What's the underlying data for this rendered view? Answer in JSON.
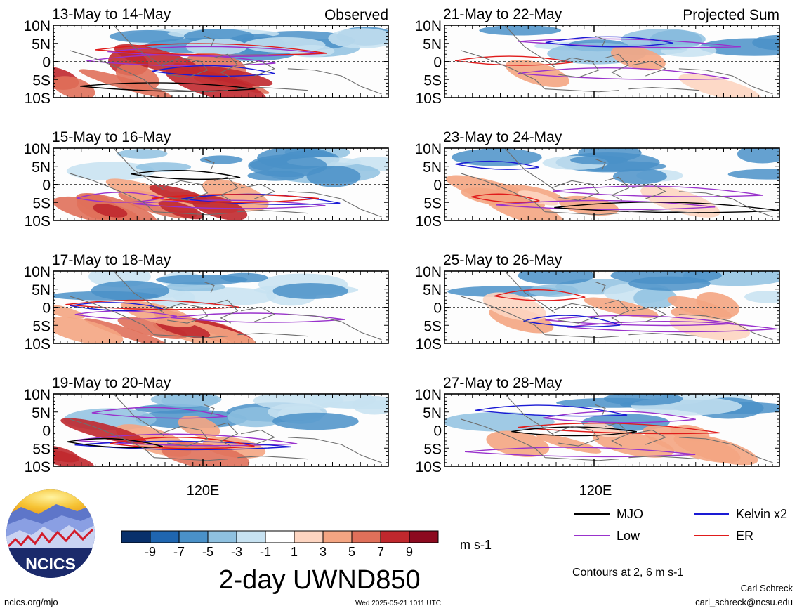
{
  "panels": [
    {
      "title": "13-May to 14-May",
      "corner": "Observed",
      "column": "left",
      "row": 0
    },
    {
      "title": "15-May to 16-May",
      "corner": "",
      "column": "left",
      "row": 1
    },
    {
      "title": "17-May to 18-May",
      "corner": "",
      "column": "left",
      "row": 2
    },
    {
      "title": "19-May to 20-May",
      "corner": "",
      "column": "left",
      "row": 3
    },
    {
      "title": "21-May to 22-May",
      "corner": "Projected Sum",
      "column": "right",
      "row": 0
    },
    {
      "title": "23-May to 24-May",
      "corner": "",
      "column": "right",
      "row": 1
    },
    {
      "title": "25-May to 26-May",
      "corner": "",
      "column": "right",
      "row": 2
    },
    {
      "title": "27-May to 28-May",
      "corner": "",
      "column": "right",
      "row": 3
    }
  ],
  "lat_ticks": [
    "10N",
    "5N",
    "0",
    "5S",
    "10S"
  ],
  "lon_label": "120E",
  "colorbar": {
    "colors": [
      "#08306b",
      "#1f66b0",
      "#4a91c8",
      "#8fc1e0",
      "#c7e2f1",
      "#ffffff",
      "#fdd5c1",
      "#f4a582",
      "#e0705a",
      "#c0282d",
      "#8c0a1f"
    ],
    "tick_labels": [
      "-9",
      "-7",
      "-5",
      "-3",
      "-1",
      "1",
      "3",
      "5",
      "7",
      "9"
    ],
    "units": "m s-1"
  },
  "field_title": "2-day UWND850",
  "legend": [
    {
      "label": "MJO",
      "color": "#000000"
    },
    {
      "label": "Kelvin x2",
      "color": "#1a1ad4"
    },
    {
      "label": "Low",
      "color": "#9932cc"
    },
    {
      "label": "ER",
      "color": "#e01b1b"
    }
  ],
  "contours_note": "Contours at 2, 6 m s-1",
  "logo_text": "NCICS",
  "footer": {
    "url": "ncics.org/mjo",
    "timestamp": "Wed 2025-05-21 1011 UTC",
    "author": "Carl Schreck",
    "email": "carl_schreck@ncsu.edu"
  },
  "chart_data": [
    {
      "type": "heatmap",
      "title": "13-May to 14-May",
      "variable": "850-hPa zonal wind anomaly (2-day)",
      "units": "m s-1",
      "ylabel_ticks": [
        "10N",
        "5N",
        "0",
        "5S",
        "10S"
      ],
      "xlabel_ticks": [
        "120E"
      ],
      "contour_levels": [
        2,
        6
      ],
      "contour_series": [
        "MJO",
        "Kelvin x2",
        "Low",
        "ER"
      ]
    },
    {
      "type": "heatmap",
      "title": "15-May to 16-May",
      "units": "m s-1",
      "contour_levels": [
        2,
        6
      ]
    },
    {
      "type": "heatmap",
      "title": "17-May to 18-May",
      "units": "m s-1",
      "contour_levels": [
        2,
        6
      ]
    },
    {
      "type": "heatmap",
      "title": "19-May to 20-May",
      "units": "m s-1",
      "contour_levels": [
        2,
        6
      ]
    },
    {
      "type": "heatmap",
      "title": "21-May to 22-May",
      "units": "m s-1",
      "contour_levels": [
        2,
        6
      ]
    },
    {
      "type": "heatmap",
      "title": "23-May to 24-May",
      "units": "m s-1",
      "contour_levels": [
        2,
        6
      ]
    },
    {
      "type": "heatmap",
      "title": "25-May to 26-May",
      "units": "m s-1",
      "contour_levels": [
        2,
        6
      ]
    },
    {
      "type": "heatmap",
      "title": "27-May to 28-May",
      "units": "m s-1",
      "contour_levels": [
        2,
        6
      ]
    }
  ]
}
